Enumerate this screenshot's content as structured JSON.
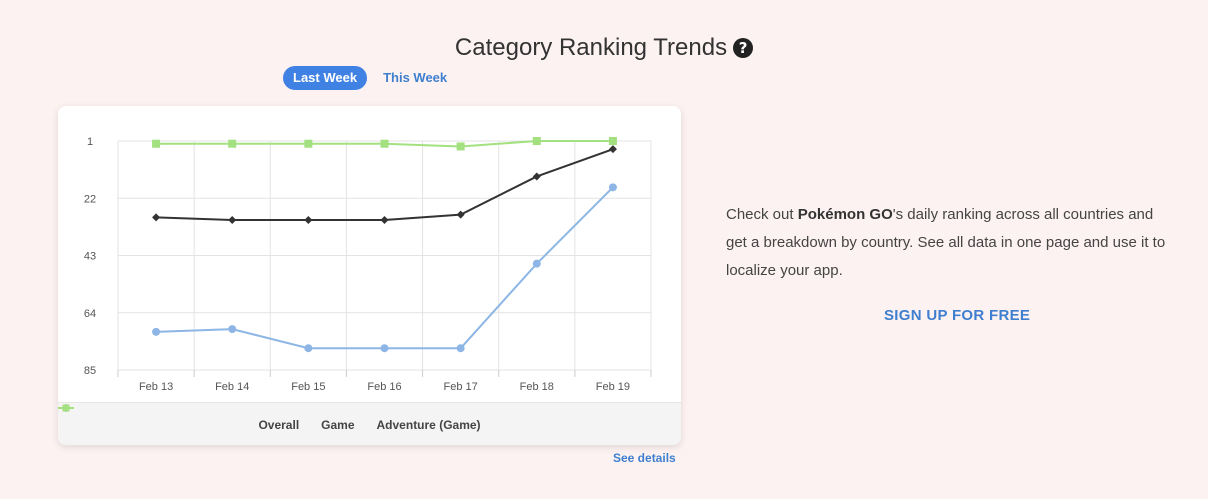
{
  "header": {
    "title": "Category Ranking Trends",
    "help_icon": "question-circle-icon",
    "help_glyph": "?"
  },
  "tabs": [
    {
      "label": "Last Week",
      "active": true
    },
    {
      "label": "This Week",
      "active": false
    }
  ],
  "chart_data": {
    "type": "line",
    "categories": [
      "Feb 13",
      "Feb 14",
      "Feb 15",
      "Feb 16",
      "Feb 17",
      "Feb 18",
      "Feb 19"
    ],
    "y_ticks": [
      1,
      22,
      43,
      64,
      85
    ],
    "ylim": [
      1,
      85
    ],
    "y_reversed": true,
    "grid": true,
    "legend_position": "bottom",
    "series": [
      {
        "name": "Overall",
        "color": "#8db6e6",
        "marker": "circle",
        "values": [
          71,
          70,
          77,
          77,
          77,
          46,
          18
        ]
      },
      {
        "name": "Game",
        "color": "#333333",
        "marker": "diamond",
        "values": [
          29,
          30,
          30,
          30,
          28,
          14,
          4
        ]
      },
      {
        "name": "Adventure (Game)",
        "color": "#a3e07f",
        "marker": "square",
        "values": [
          2,
          2,
          2,
          2,
          3,
          1,
          1
        ]
      }
    ]
  },
  "links": {
    "see_details": "See details",
    "signup": "SIGN UP FOR FREE"
  },
  "promo": {
    "before": "Check out ",
    "app_name": "Pokémon GO",
    "after": "'s daily ranking across all countries and get a breakdown by country. See all data in one page and use it to localize your app."
  }
}
